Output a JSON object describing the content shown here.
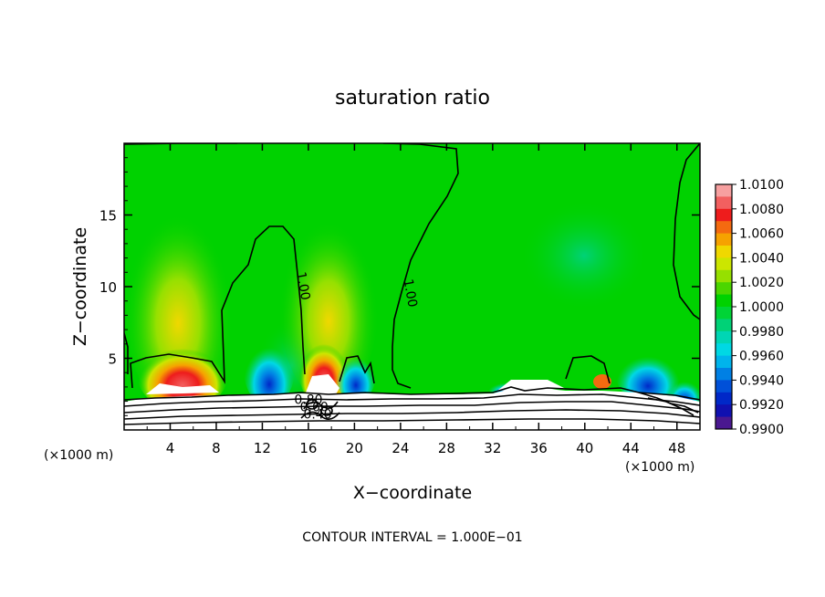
{
  "chart_data": {
    "type": "heatmap",
    "title": "saturation ratio",
    "xlabel": "X−coordinate",
    "ylabel": "Z−coordinate",
    "x_unit_left": "(×1000 m)",
    "x_unit_right": "(×1000 m)",
    "footer": "CONTOUR INTERVAL = 1.000E−01",
    "xlim": [
      0,
      50
    ],
    "ylim": [
      0,
      20
    ],
    "x_ticks": [
      4,
      8,
      12,
      16,
      20,
      24,
      28,
      32,
      36,
      40,
      44,
      48
    ],
    "y_ticks": [
      5,
      10,
      15
    ],
    "contour_labels": [
      {
        "text": "1.00",
        "x": 15.2,
        "z": 10.0
      },
      {
        "text": "1.00",
        "x": 24.5,
        "z": 9.5
      },
      {
        "text": "0.80",
        "x": 16.0,
        "z": 1.8
      },
      {
        "text": "0.60",
        "x": 16.5,
        "z": 1.3
      },
      {
        "text": "0.40",
        "x": 16.8,
        "z": 0.8
      }
    ],
    "colorbar": {
      "min": 0.99,
      "max": 1.01,
      "labels": [
        "1.0100",
        "1.0080",
        "1.0060",
        "1.0040",
        "1.0020",
        "1.0000",
        "0.9980",
        "0.9960",
        "0.9940",
        "0.9920",
        "0.9900"
      ],
      "colors": [
        "#f7a0a0",
        "#f26060",
        "#ee1c1c",
        "#f46a10",
        "#f6a200",
        "#f0d800",
        "#cce600",
        "#96e000",
        "#4bd600",
        "#00d200",
        "#00d436",
        "#00d277",
        "#00d6b4",
        "#00d8e4",
        "#00b4ec",
        "#0080e4",
        "#0050d8",
        "#0028c8",
        "#1010b0",
        "#4a1890"
      ]
    }
  }
}
